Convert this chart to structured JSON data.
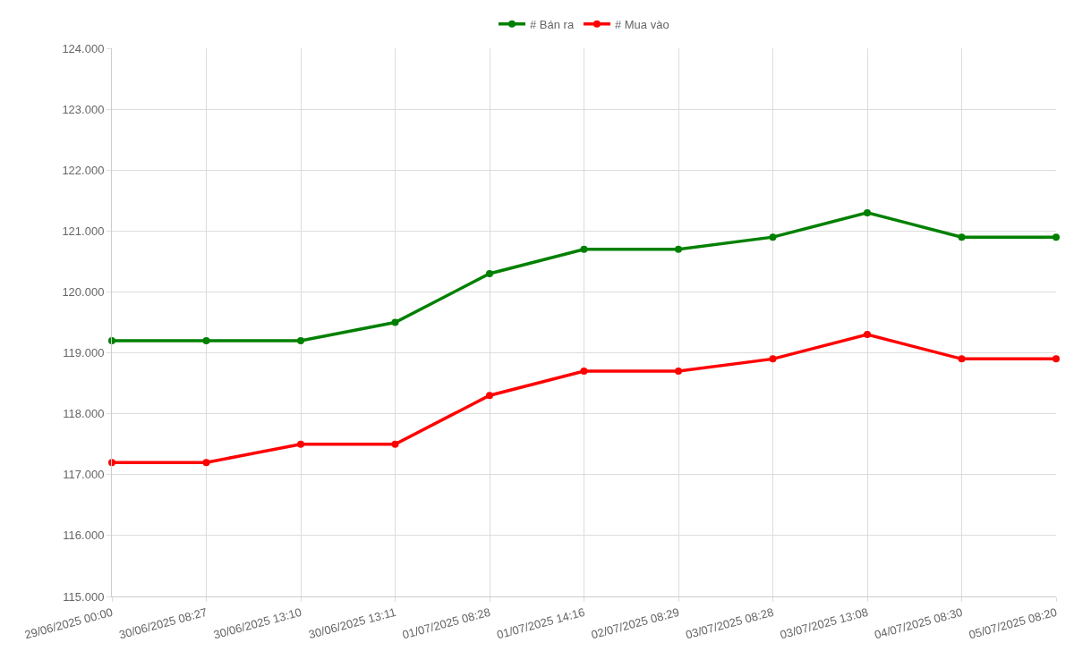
{
  "chart_data": {
    "type": "line",
    "categories": [
      "29/06/2025 00:00",
      "30/06/2025 08:27",
      "30/06/2025 13:10",
      "30/06/2025 13:11",
      "01/07/2025 08:28",
      "01/07/2025 14:16",
      "02/07/2025 08:29",
      "03/07/2025 08:28",
      "03/07/2025 13:08",
      "04/07/2025 08:30",
      "05/07/2025 08:20"
    ],
    "series": [
      {
        "name": "# Bán ra",
        "color": "#008000",
        "values": [
          119200,
          119200,
          119200,
          119500,
          120300,
          120700,
          120700,
          120900,
          121300,
          120900,
          120900
        ]
      },
      {
        "name": "# Mua vào",
        "color": "#ff0000",
        "values": [
          117200,
          117200,
          117500,
          117500,
          118300,
          118700,
          118700,
          118900,
          119300,
          118900,
          118900
        ]
      }
    ],
    "ylim": [
      115000,
      124000
    ],
    "yticks": [
      {
        "value": 115000,
        "label": "115.000"
      },
      {
        "value": 116000,
        "label": "116.000"
      },
      {
        "value": 117000,
        "label": "117.000"
      },
      {
        "value": 118000,
        "label": "118.000"
      },
      {
        "value": 119000,
        "label": "119.000"
      },
      {
        "value": 120000,
        "label": "120.000"
      },
      {
        "value": 121000,
        "label": "121.000"
      },
      {
        "value": 122000,
        "label": "122.000"
      },
      {
        "value": 123000,
        "label": "123.000"
      },
      {
        "value": 124000,
        "label": "124.000"
      }
    ],
    "grid": true,
    "legend": "top",
    "marker": "circle",
    "line_style": "solid"
  }
}
